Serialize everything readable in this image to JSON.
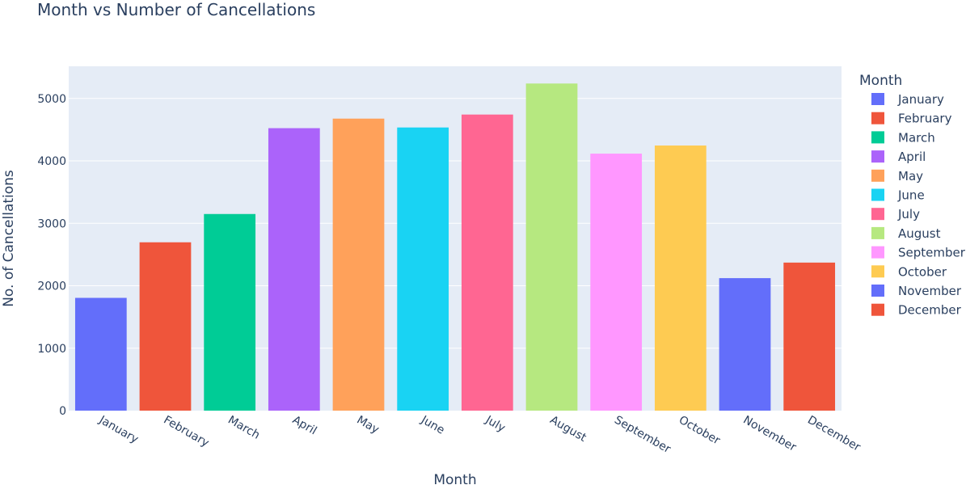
{
  "chart_data": {
    "type": "bar",
    "title": "Month vs Number of Cancellations",
    "xlabel": "Month",
    "ylabel": "No. of Cancellations",
    "categories": [
      "January",
      "February",
      "March",
      "April",
      "May",
      "June",
      "July",
      "August",
      "September",
      "October",
      "November",
      "December"
    ],
    "values": [
      1806,
      2696,
      3149,
      4524,
      4677,
      4535,
      4742,
      5239,
      4116,
      4246,
      2122,
      2371
    ],
    "ylim": [
      0,
      5515
    ],
    "yticks": [
      0,
      1000,
      2000,
      3000,
      4000,
      5000
    ],
    "ytick_labels": [
      "0",
      "1000",
      "2000",
      "3000",
      "4000",
      "5000"
    ],
    "grid": true,
    "legend": {
      "title": "Month",
      "placement": "right"
    },
    "colors": [
      "#636efa",
      "#ef553b",
      "#00cc96",
      "#ab63fa",
      "#ffa15a",
      "#19d3f3",
      "#ff6692",
      "#b6e880",
      "#ff97ff",
      "#fecb52",
      "#636efa",
      "#ef553b"
    ],
    "plot_background": "#e5ecf6"
  }
}
